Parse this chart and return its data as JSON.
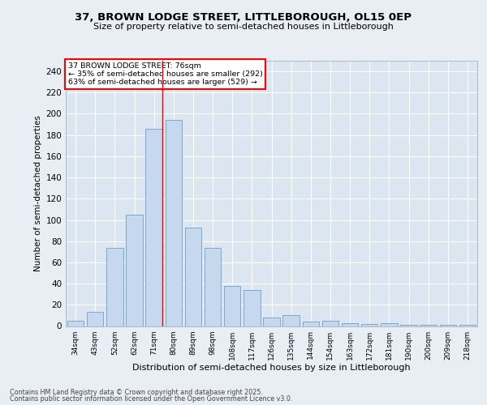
{
  "title1": "37, BROWN LODGE STREET, LITTLEBOROUGH, OL15 0EP",
  "title2": "Size of property relative to semi-detached houses in Littleborough",
  "xlabel": "Distribution of semi-detached houses by size in Littleborough",
  "ylabel": "Number of semi-detached properties",
  "categories": [
    "34sqm",
    "43sqm",
    "52sqm",
    "62sqm",
    "71sqm",
    "80sqm",
    "89sqm",
    "98sqm",
    "108sqm",
    "117sqm",
    "126sqm",
    "135sqm",
    "144sqm",
    "154sqm",
    "163sqm",
    "172sqm",
    "181sqm",
    "190sqm",
    "200sqm",
    "209sqm",
    "218sqm"
  ],
  "values": [
    5,
    13,
    74,
    105,
    186,
    194,
    93,
    74,
    38,
    34,
    8,
    10,
    4,
    5,
    3,
    2,
    3,
    1,
    1,
    1,
    1
  ],
  "bar_color": "#c5d8ed",
  "bar_edge_color": "#7aa8cc",
  "red_line_x": 4.5,
  "annotation_text_line1": "37 BROWN LODGE STREET: 76sqm",
  "annotation_text_line2": "← 35% of semi-detached houses are smaller (292)",
  "annotation_text_line3": "63% of semi-detached houses are larger (529) →",
  "bg_color": "#e8eef4",
  "plot_bg_color": "#dce6f0",
  "footer1": "Contains HM Land Registry data © Crown copyright and database right 2025.",
  "footer2": "Contains public sector information licensed under the Open Government Licence v3.0.",
  "ylim": [
    0,
    250
  ],
  "yticks": [
    0,
    20,
    40,
    60,
    80,
    100,
    120,
    140,
    160,
    180,
    200,
    220,
    240
  ]
}
